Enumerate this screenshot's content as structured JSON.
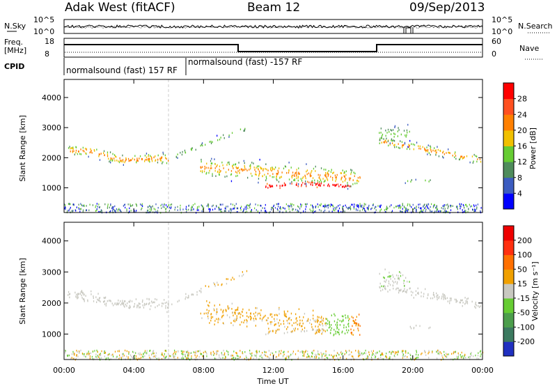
{
  "header": {
    "radar": "Adak West (fitACF)",
    "beam": "Beam 12",
    "date": "09/Sep/2013"
  },
  "panels": {
    "nsky_label": "N.Sky",
    "nsearch_label": "N.Search",
    "nsky_ticks": [
      "10^5",
      "10^0"
    ],
    "freq_label_1": "Freq.",
    "freq_label_2": "[MHz]",
    "freq_ticks": [
      "18",
      "8"
    ],
    "nave_label": "Nave",
    "nave_ticks": [
      "60",
      "0"
    ],
    "cpid_label": "CPID",
    "cpid_segments": [
      "normalsound (fast) 157 RF",
      "normalsound (fast) -157 RF"
    ]
  },
  "chart_data": [
    {
      "type": "heatmap",
      "name": "power",
      "ylabel": "Slant Range [km]",
      "xlabel": "Time UT",
      "xticks": [
        "00:00",
        "04:00",
        "08:00",
        "12:00",
        "16:00",
        "20:00",
        "00:00"
      ],
      "yticks": [
        1000,
        2000,
        3000,
        4000
      ],
      "ylim": [
        180,
        4600
      ],
      "colorbar_label": "Power [dB]",
      "colorbar_ticks": [
        "4",
        "8",
        "12",
        "16",
        "20",
        "24",
        "28"
      ],
      "colors": [
        "#0000ff",
        "#3c5cc0",
        "#4f8c5c",
        "#66cc33",
        "#f0c000",
        "#ff8000",
        "#ff5020",
        "#ff0000"
      ]
    },
    {
      "type": "heatmap",
      "name": "velocity",
      "ylabel": "Slant Range [km]",
      "xlabel": "Time UT",
      "xticks": [
        "00:00",
        "04:00",
        "08:00",
        "12:00",
        "16:00",
        "20:00",
        "00:00"
      ],
      "yticks": [
        1000,
        2000,
        3000,
        4000
      ],
      "ylim": [
        180,
        4600
      ],
      "colorbar_label": "Velocity [m s⁻¹]",
      "colorbar_ticks": [
        "200",
        "100",
        "50",
        "15",
        "-15",
        "-50",
        "-100",
        "-200"
      ],
      "colors": [
        "#2030c0",
        "#3c7a60",
        "#4c9e4c",
        "#66cc33",
        "#c8c8c0",
        "#f0a000",
        "#ff7000",
        "#ff3010",
        "#ee0000"
      ]
    }
  ]
}
